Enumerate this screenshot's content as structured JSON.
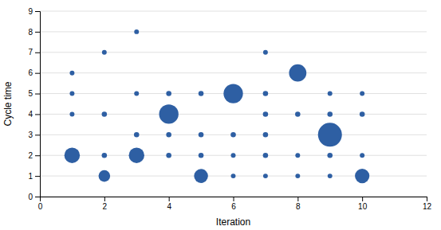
{
  "chart_data": {
    "type": "scatter",
    "xlabel": "Iteration",
    "ylabel": "Cycle time",
    "x": [
      1,
      1,
      1,
      1,
      2,
      2,
      2,
      2,
      3,
      3,
      3,
      3,
      4,
      4,
      4,
      4,
      5,
      5,
      5,
      5,
      6,
      6,
      6,
      6,
      7,
      7,
      7,
      7,
      7,
      7,
      8,
      8,
      8,
      8,
      9,
      9,
      9,
      9,
      9,
      10,
      10,
      10,
      10
    ],
    "values": [
      6,
      5,
      4,
      2,
      7,
      4,
      2,
      1,
      8,
      5,
      3,
      2,
      5,
      4,
      3,
      2,
      5,
      3,
      2,
      1,
      5,
      3,
      2,
      1,
      7,
      5,
      4,
      3,
      2,
      1,
      6,
      4,
      2,
      1,
      5,
      4,
      3,
      2,
      1,
      5,
      4,
      2,
      1
    ],
    "sizes": [
      15,
      15,
      15,
      160,
      15,
      18,
      18,
      90,
      15,
      15,
      18,
      160,
      18,
      250,
      18,
      18,
      18,
      18,
      18,
      130,
      250,
      18,
      15,
      15,
      15,
      18,
      18,
      18,
      18,
      15,
      200,
      18,
      15,
      15,
      15,
      18,
      380,
      18,
      15,
      15,
      18,
      15,
      140
    ],
    "color": "#2e5fa3",
    "xlim": [
      0,
      12
    ],
    "ylim": [
      0,
      9
    ],
    "xticks": [
      0,
      2,
      4,
      6,
      8,
      10,
      12
    ],
    "yticks": [
      0,
      1,
      2,
      3,
      4,
      5,
      6,
      7,
      8,
      9
    ],
    "grid": true
  }
}
